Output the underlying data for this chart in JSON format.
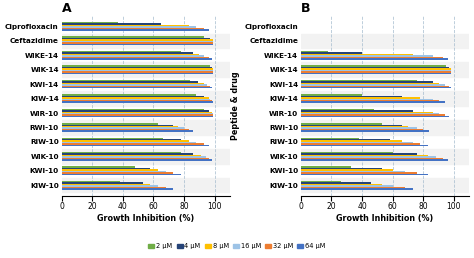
{
  "panel_A": {
    "title": "A",
    "categories": [
      "Ciprofloxacin",
      "Ceftazidime",
      "WIKE-14",
      "WIK-14",
      "KWI-14",
      "KIW-14",
      "WIR-10",
      "RWI-10",
      "RIW-10",
      "WIK-10",
      "KWI-10",
      "KIW-10"
    ],
    "values": {
      "2uM": [
        37,
        93,
        78,
        97,
        84,
        88,
        93,
        63,
        66,
        78,
        48,
        38
      ],
      "4uM": [
        65,
        97,
        86,
        98,
        89,
        93,
        96,
        73,
        78,
        86,
        58,
        53
      ],
      "8uM": [
        83,
        99,
        90,
        99,
        93,
        96,
        98,
        76,
        83,
        91,
        63,
        58
      ],
      "16uM": [
        88,
        99,
        93,
        99,
        95,
        97,
        99,
        80,
        88,
        94,
        68,
        63
      ],
      "32uM": [
        93,
        99,
        96,
        99,
        97,
        98,
        99,
        83,
        93,
        96,
        73,
        68
      ],
      "64uM": [
        96,
        99,
        98,
        99,
        98,
        99,
        99,
        86,
        96,
        98,
        78,
        73
      ]
    }
  },
  "panel_B": {
    "title": "B",
    "categories": [
      "Ciprofloxacin",
      "Ceftazidime",
      "WIKE-14",
      "WIK-14",
      "KWI-14",
      "KIW-14",
      "WIR-10",
      "RWI-10",
      "RIW-10",
      "WIK-10",
      "KWI-10",
      "KIW-10"
    ],
    "values": {
      "2uM": [
        0,
        0,
        18,
        95,
        76,
        40,
        48,
        53,
        38,
        60,
        33,
        26
      ],
      "4uM": [
        0,
        0,
        40,
        97,
        86,
        66,
        73,
        66,
        58,
        76,
        53,
        46
      ],
      "8uM": [
        0,
        0,
        73,
        98,
        90,
        78,
        86,
        70,
        66,
        83,
        60,
        53
      ],
      "16uM": [
        0,
        0,
        86,
        98,
        94,
        86,
        90,
        76,
        73,
        88,
        68,
        60
      ],
      "32uM": [
        0,
        0,
        93,
        98,
        97,
        90,
        94,
        80,
        78,
        93,
        76,
        68
      ],
      "64uM": [
        0,
        0,
        96,
        98,
        98,
        94,
        97,
        84,
        83,
        96,
        83,
        73
      ]
    }
  },
  "colors": {
    "2uM": "#70AD47",
    "4uM": "#264478",
    "8uM": "#FFC000",
    "16uM": "#9DC3E6",
    "32uM": "#ED7D31",
    "64uM": "#4472C4"
  },
  "legend_labels": [
    "2 μM",
    "4 μM",
    "8 μM",
    "16 μM",
    "32 μM",
    "64 μM"
  ],
  "xlabel": "Growth Inhibition (%)",
  "ylabel": "Peptide & drug",
  "xlim": [
    0,
    110
  ],
  "xticks": [
    0,
    20,
    40,
    60,
    80,
    100
  ]
}
